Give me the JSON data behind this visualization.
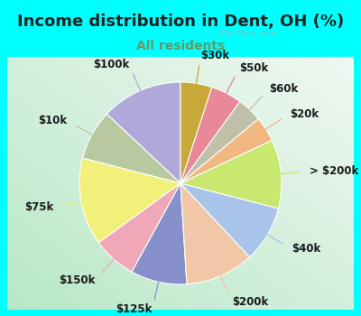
{
  "title": "Income distribution in Dent, OH (%)",
  "subtitle": "All residents",
  "background_color": "#00FFFF",
  "watermark": "City-Data.com",
  "slices": [
    {
      "label": "$100k",
      "value": 13,
      "color": "#b0a8d8"
    },
    {
      "label": "$10k",
      "value": 8,
      "color": "#b8c8a0"
    },
    {
      "label": "$75k",
      "value": 14,
      "color": "#f0f07a"
    },
    {
      "label": "$150k",
      "value": 7,
      "color": "#f0a8b8"
    },
    {
      "label": "$125k",
      "value": 9,
      "color": "#8890cc"
    },
    {
      "label": "$200k",
      "value": 11,
      "color": "#f0c8a8"
    },
    {
      "label": "$40k",
      "value": 9,
      "color": "#a8c4e8"
    },
    {
      "label": "> $200k",
      "value": 11,
      "color": "#c8e870"
    },
    {
      "label": "$20k",
      "value": 4,
      "color": "#f0b880"
    },
    {
      "label": "$60k",
      "value": 4,
      "color": "#c0c0a8"
    },
    {
      "label": "$50k",
      "value": 5,
      "color": "#e88898"
    },
    {
      "label": "$30k",
      "value": 5,
      "color": "#c8a838"
    }
  ],
  "label_fontsize": 8.5,
  "title_fontsize": 13,
  "subtitle_fontsize": 10,
  "title_color": "#222222",
  "subtitle_color": "#669966"
}
